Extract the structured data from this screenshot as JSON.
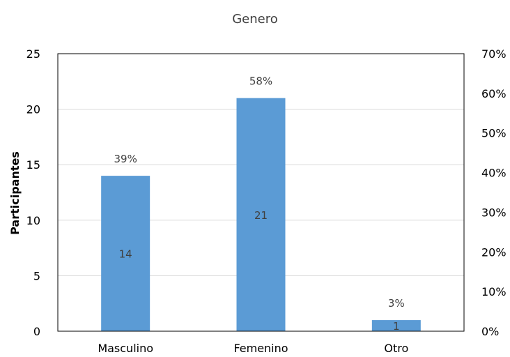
{
  "chart_data": {
    "type": "bar",
    "title": "Genero",
    "ylabel": "Participantes",
    "categories": [
      "Masculino",
      "Femenino",
      "Otro"
    ],
    "values": [
      14,
      21,
      1
    ],
    "percent_labels": [
      "39%",
      "58%",
      "3%"
    ],
    "value_labels": [
      "14",
      "21",
      "1"
    ],
    "ylim": [
      0,
      25
    ],
    "yticks": [
      "0",
      "5",
      "10",
      "15",
      "20",
      "25"
    ],
    "y2lim": [
      0,
      0.7
    ],
    "y2ticks": [
      "0%",
      "10%",
      "20%",
      "30%",
      "40%",
      "50%",
      "60%",
      "70%"
    ],
    "grid": true,
    "bar_color": "#5B9BD5",
    "grid_color": "#D9D9D9"
  }
}
